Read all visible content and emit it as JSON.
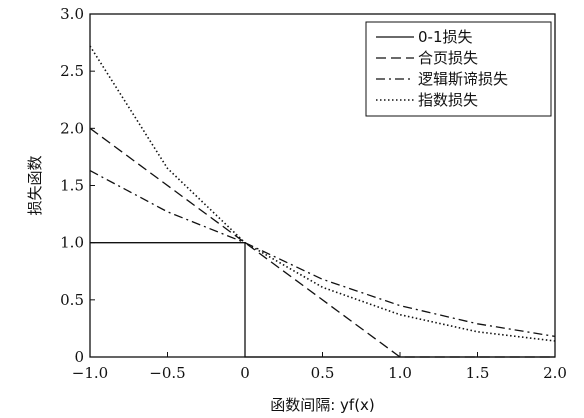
{
  "chart_data": {
    "type": "line",
    "xlabel": "函数间隔: yf(x)",
    "ylabel": "损失函数",
    "xlim": [
      -1.0,
      2.0
    ],
    "ylim": [
      0,
      3.0
    ],
    "x_ticks": [
      -1.0,
      -0.5,
      0,
      0.5,
      1.0,
      1.5,
      2.0
    ],
    "x_tick_labels": [
      "−1.0",
      "−0.5",
      "0",
      "0.5",
      "1.0",
      "1.5",
      "2.0"
    ],
    "y_ticks": [
      0,
      0.5,
      1.0,
      1.5,
      2.0,
      2.5,
      3.0
    ],
    "y_tick_labels": [
      "0",
      "0.5",
      "1.0",
      "1.5",
      "2.0",
      "2.5",
      "3.0"
    ],
    "grid": false,
    "legend_position": "top-right",
    "series": [
      {
        "name": "0-1损失",
        "style": "solid",
        "points": [
          [
            -1.0,
            1.0
          ],
          [
            0,
            1.0
          ],
          [
            0,
            0
          ],
          [
            2.0,
            0
          ]
        ]
      },
      {
        "name": "合页损失",
        "style": "dashed",
        "points": [
          [
            -1.0,
            2.0
          ],
          [
            0,
            1.0
          ],
          [
            1.0,
            0
          ],
          [
            2.0,
            0
          ]
        ]
      },
      {
        "name": "逻辑斯谛损失",
        "style": "dashdot",
        "points": [
          [
            -1.0,
            1.63
          ],
          [
            -0.5,
            1.27
          ],
          [
            0,
            1.0
          ],
          [
            0.5,
            0.68
          ],
          [
            1.0,
            0.45
          ],
          [
            1.5,
            0.29
          ],
          [
            2.0,
            0.18
          ]
        ]
      },
      {
        "name": "指数损失",
        "style": "dotted",
        "points": [
          [
            -1.0,
            2.72
          ],
          [
            -0.5,
            1.65
          ],
          [
            0,
            1.0
          ],
          [
            0.5,
            0.61
          ],
          [
            1.0,
            0.37
          ],
          [
            1.5,
            0.22
          ],
          [
            2.0,
            0.14
          ]
        ]
      }
    ]
  }
}
